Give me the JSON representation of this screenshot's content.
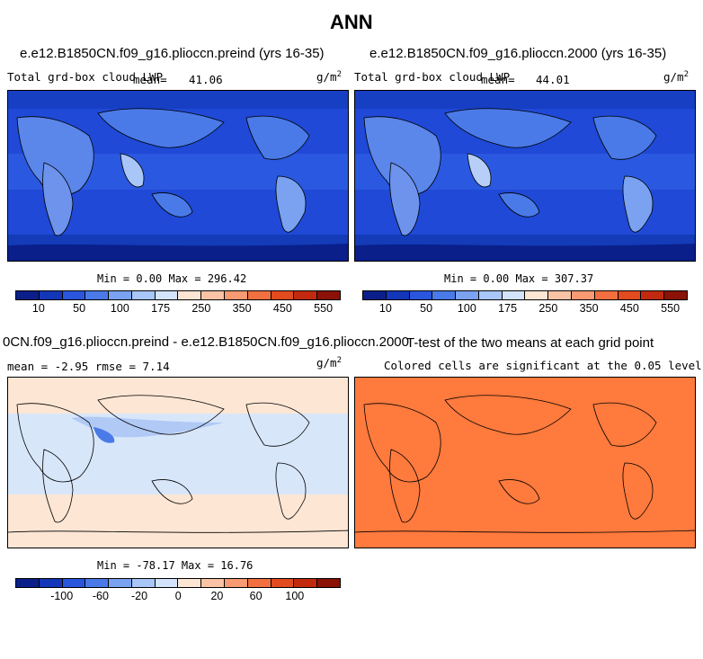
{
  "main_title": "ANN",
  "panels": [
    {
      "title": "e.e12.B1850CN.f09_g16.plioccn.preind (yrs 16-35)",
      "variable": "Total grd-box cloud LWP",
      "mean_label": "mean=",
      "mean_value": "41.06",
      "units": "g/m",
      "units_sup": "2",
      "min_max": "Min =    0.00 Max = 296.42",
      "colorbar_labels": [
        "10",
        "50",
        "100",
        "175",
        "250",
        "350",
        "450",
        "550"
      ]
    },
    {
      "title": "e.e12.B1850CN.f09_g16.plioccn.2000 (yrs 16-35)",
      "variable": "Total grd-box cloud LWP",
      "mean_label": "mean=",
      "mean_value": "44.01",
      "units": "g/m",
      "units_sup": "2",
      "min_max": "Min =    0.00 Max = 307.37",
      "colorbar_labels": [
        "10",
        "50",
        "100",
        "175",
        "250",
        "350",
        "450",
        "550"
      ]
    },
    {
      "title": "0CN.f09_g16.plioccn.preind - e.e12.B1850CN.f09_g16.plioccn.2000",
      "stats": "mean =   -2.95    rmse =    7.14",
      "units": "g/m",
      "units_sup": "2",
      "min_max": "Min = -78.17 Max =  16.76",
      "colorbar_labels": [
        "-100",
        "-60",
        "-20",
        "0",
        "20",
        "60",
        "100"
      ]
    },
    {
      "title": "T-test of the two means at each grid point",
      "subtitle": "Colored cells are significant at the 0.05 level"
    }
  ],
  "colors": {
    "field_scale": [
      "#0a1f8a",
      "#1436b8",
      "#2a55dd",
      "#4a7ae8",
      "#7aa2f0",
      "#a8c6f7",
      "#d2e3fb",
      "#fde5d3",
      "#fbc3a6",
      "#f89a72",
      "#f2703f",
      "#e24a1f",
      "#c22a10",
      "#8a1206"
    ],
    "diff_scale": [
      "#0a1f8a",
      "#1436b8",
      "#2a55dd",
      "#4a7ae8",
      "#7aa2f0",
      "#a8c6f7",
      "#d2e3fb",
      "#fde5d3",
      "#fbc3a6",
      "#f89a72",
      "#f2703f",
      "#e24a1f",
      "#c22a10",
      "#8a1206"
    ],
    "ocean_field": "#1f49d6",
    "ocean_field_deep": "#143bb8",
    "land_field": "#4d7de6",
    "diff_bg": "#fde6d4",
    "diff_land": "#d8e6fa",
    "ttest": "#ff7a3d"
  }
}
